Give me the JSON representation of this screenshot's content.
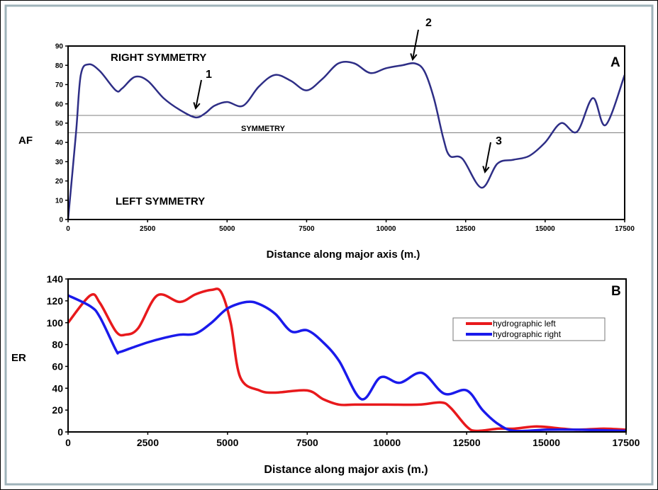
{
  "chart_data": [
    {
      "type": "line",
      "panel_label": "A",
      "xlabel": "Distance along major axis (m.)",
      "ylabel": "AF",
      "xlim": [
        0,
        17500
      ],
      "ylim": [
        0,
        90
      ],
      "x_ticks": [
        "0",
        "2500",
        "5000",
        "7500",
        "10000",
        "12500",
        "15000",
        "17500"
      ],
      "y_ticks": [
        "0",
        "10",
        "20",
        "30",
        "40",
        "50",
        "60",
        "70",
        "80",
        "90"
      ],
      "grid": false,
      "color": "#2e2e86",
      "reference_lines": [
        54,
        45
      ],
      "region_labels": {
        "upper": "RIGHT SYMMETRY",
        "middle": "SYMMETRY",
        "lower": "LEFT SYMMETRY"
      },
      "annotations": [
        "1",
        "2",
        "3"
      ],
      "x": [
        0,
        250,
        400,
        650,
        1000,
        1500,
        1700,
        2100,
        2500,
        3000,
        3500,
        4000,
        4300,
        4600,
        5000,
        5500,
        6000,
        6500,
        7000,
        7500,
        8000,
        8500,
        9000,
        9500,
        10000,
        10500,
        10900,
        11200,
        11500,
        11800,
        12000,
        12400,
        13000,
        13500,
        14000,
        14500,
        15000,
        15500,
        16000,
        16500,
        16900,
        17500
      ],
      "y": [
        0,
        45,
        75,
        80.5,
        77,
        67,
        68,
        74,
        72,
        63,
        57,
        53,
        55,
        59,
        61,
        59,
        69,
        75,
        72,
        67,
        73,
        81,
        81,
        76,
        78.5,
        80,
        81,
        77,
        63,
        42,
        33,
        31.5,
        16.5,
        29,
        31,
        33,
        40,
        50,
        45.5,
        63,
        49,
        75
      ]
    },
    {
      "type": "line",
      "panel_label": "B",
      "xlabel": "Distance along major axis (m.)",
      "ylabel": "ER",
      "xlim": [
        0,
        17500
      ],
      "ylim": [
        0,
        140
      ],
      "x_ticks": [
        "0",
        "2500",
        "5000",
        "7500",
        "10000",
        "12500",
        "15000",
        "17500"
      ],
      "y_ticks": [
        "0",
        "20",
        "40",
        "60",
        "80",
        "100",
        "120",
        "140"
      ],
      "grid": false,
      "legend": "right",
      "series": [
        {
          "name": "hydrographic left",
          "color": "#e8191c",
          "x": [
            0,
            700,
            1000,
            1500,
            1800,
            2200,
            2800,
            3500,
            4000,
            4500,
            4800,
            5100,
            5400,
            6000,
            6500,
            7500,
            8000,
            8500,
            9000,
            10000,
            11000,
            11700,
            12000,
            12500,
            12800,
            13500,
            14000,
            14700,
            15500,
            16000,
            16800,
            17500
          ],
          "y": [
            100,
            125,
            118,
            92,
            89,
            95,
            125,
            119,
            126,
            130,
            128,
            100,
            50,
            38,
            36,
            38,
            30,
            25,
            25,
            25,
            25,
            27,
            22,
            5,
            1,
            3,
            3,
            5,
            3,
            2,
            3,
            2
          ]
        },
        {
          "name": "hydrographic right",
          "color": "#1a1aeb",
          "x": [
            0,
            700,
            1000,
            1500,
            1600,
            2000,
            2500,
            3000,
            3500,
            4000,
            4500,
            5000,
            5600,
            6000,
            6500,
            7000,
            7500,
            8000,
            8500,
            9200,
            9800,
            10400,
            11100,
            11800,
            12500,
            13000,
            13500,
            14000,
            15000,
            16000,
            17500
          ],
          "y": [
            125,
            115,
            105,
            75,
            73,
            77,
            82,
            86,
            89,
            90,
            100,
            113,
            119,
            117,
            108,
            92,
            93,
            82,
            65,
            30,
            50,
            45,
            54,
            35,
            38,
            20,
            7,
            1,
            2,
            2,
            1
          ]
        }
      ]
    }
  ]
}
